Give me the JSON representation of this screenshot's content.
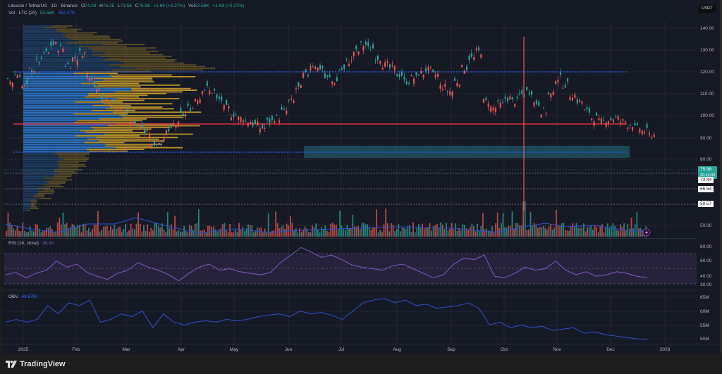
{
  "header": {
    "symbol": "Litecoin / TetherUS · 1D · Binance",
    "open_label": "O",
    "open": "74.28",
    "high_label": "H",
    "high": "76.25",
    "low_label": "L",
    "low": "73.56",
    "close_label": "C",
    "close": "75.98",
    "change": "+1.69 (+2.27%)",
    "vol_label": "Vol",
    "vol": "53.58K",
    "vol_change": "+1.69 (+2.27%)"
  },
  "volume_legend": {
    "label": "Vol · LTC (20)",
    "value1": "53.58K",
    "value2": "362.47K"
  },
  "rsi_legend": {
    "label": "RSI (14, close)",
    "value": "38.30"
  },
  "obv_legend": {
    "label": "OBV",
    "value": "49.67M"
  },
  "currency": "USDT",
  "price_axis": [
    "140.00",
    "130.00",
    "120.00",
    "110.00",
    "100.00",
    "90.00",
    "80.00",
    "50.00"
  ],
  "price_tags": {
    "last": "75.98",
    "countdown": "20:14:39",
    "level1": "73.44",
    "level2": "66.54",
    "level3": "59.57"
  },
  "rsi_axis": [
    "80.00",
    "60.00",
    "40.00",
    "30.00"
  ],
  "obv_axis": [
    "65M",
    "60M",
    "55M",
    "50M"
  ],
  "time_axis": [
    "2025",
    "Feb",
    "Mar",
    "Apr",
    "May",
    "Jun",
    "Jul",
    "Aug",
    "Sep",
    "Oct",
    "Nov",
    "Dec",
    "2026"
  ],
  "branding": "TradingView",
  "colors": {
    "up": "#26a69a",
    "down": "#ef5350",
    "poc": "#f23645",
    "value_area": "#2962ff",
    "profile_up": "#2f7dd1",
    "profile_down": "#d4a52a",
    "rsi": "#7e57c2",
    "obv": "#2f4fc9",
    "zone": "#1f4f5c"
  },
  "chart_data": [
    {
      "type": "candlestick",
      "title": "Litecoin / TetherUS · 1D · Binance",
      "ylabel": "USDT",
      "ylim": [
        48,
        146
      ],
      "x": [
        "2025-01",
        "2025-02",
        "2025-03",
        "2025-04",
        "2025-05",
        "2025-06",
        "2025-07",
        "2025-08",
        "2025-09",
        "2025-10",
        "2025-11",
        "2025-12"
      ],
      "approx_close": [
        110,
        125,
        95,
        83,
        98,
        88,
        115,
        125,
        112,
        122,
        100,
        80
      ],
      "last_close": 75.98,
      "horizontal_levels": {
        "value_area_high": 120,
        "poc": 96,
        "value_area_low": 83,
        "support_73_44": 73.44,
        "support_66_54": 66.54,
        "support_59_57": 59.57
      },
      "zone": {
        "from": 81,
        "to": 86,
        "start": "2025-06"
      }
    },
    {
      "type": "bar",
      "title": "Vol · LTC (20)",
      "values_latest": {
        "volume": "53.58K",
        "ma": "362.47K"
      }
    },
    {
      "type": "line",
      "title": "RSI (14, close)",
      "ylim": [
        30,
        80
      ],
      "bands": [
        70,
        50,
        30
      ],
      "latest": 38.3,
      "monthly_approx": [
        45,
        60,
        52,
        35,
        55,
        45,
        68,
        62,
        48,
        60,
        45,
        38
      ]
    },
    {
      "type": "line",
      "title": "OBV",
      "ylim": [
        48,
        66
      ],
      "unit": "M",
      "latest": 49.67,
      "monthly_approx": [
        56,
        62,
        56,
        55,
        56,
        57,
        63,
        64,
        62,
        63,
        55,
        50
      ]
    }
  ]
}
